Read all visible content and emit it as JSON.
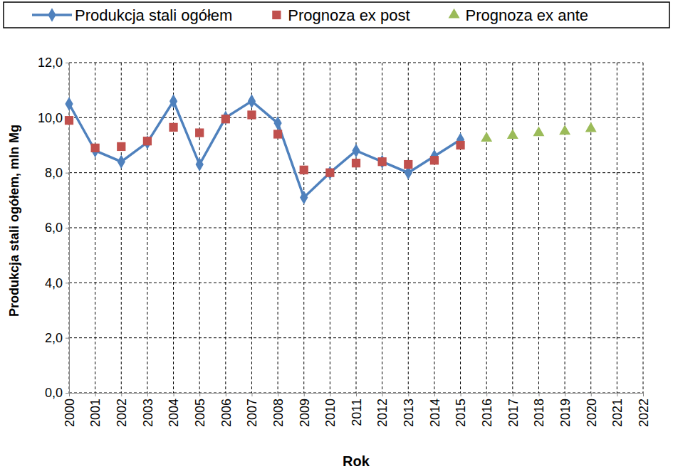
{
  "chart_data": {
    "type": "line",
    "x_label": "Rok",
    "y_label": "Produkcja stali ogółem, mln Mg",
    "x": [
      2000,
      2001,
      2002,
      2003,
      2004,
      2005,
      2006,
      2007,
      2008,
      2009,
      2010,
      2011,
      2012,
      2013,
      2014,
      2015,
      2016,
      2017,
      2018,
      2019,
      2020
    ],
    "series": [
      {
        "name": "Produkcja stali ogółem",
        "type": "line",
        "color": "#4f81bd",
        "marker": "diamond",
        "line_style": "solid",
        "values": [
          10.5,
          8.8,
          8.4,
          9.1,
          10.6,
          8.3,
          10.0,
          10.6,
          9.8,
          7.1,
          8.0,
          8.8,
          8.4,
          8.0,
          8.6,
          9.2,
          null,
          null,
          null,
          null,
          null
        ]
      },
      {
        "name": "Prognoza ex post",
        "type": "scatter",
        "color": "#c0504d",
        "marker": "square",
        "line_style": "none",
        "values": [
          9.9,
          8.9,
          8.95,
          9.15,
          9.65,
          9.45,
          9.95,
          10.1,
          9.4,
          8.1,
          8.0,
          8.35,
          8.4,
          8.3,
          8.45,
          9.0,
          null,
          null,
          null,
          null,
          null
        ]
      },
      {
        "name": "Prognoza ex ante",
        "type": "scatter",
        "color": "#9bbb59",
        "marker": "triangle",
        "line_style": "none",
        "values": [
          null,
          null,
          null,
          null,
          null,
          null,
          null,
          null,
          null,
          null,
          null,
          null,
          null,
          null,
          null,
          null,
          9.25,
          9.35,
          9.45,
          9.5,
          9.6
        ]
      }
    ],
    "xlim": [
      2000,
      2022
    ],
    "xticks": [
      2000,
      2001,
      2002,
      2003,
      2004,
      2005,
      2006,
      2007,
      2008,
      2009,
      2010,
      2011,
      2012,
      2013,
      2014,
      2015,
      2016,
      2017,
      2018,
      2019,
      2020,
      2021,
      2022
    ],
    "ylim": [
      0,
      12
    ],
    "yticks": [
      {
        "value": 0,
        "label": "0,0"
      },
      {
        "value": 2,
        "label": "2,0"
      },
      {
        "value": 4,
        "label": "4,0"
      },
      {
        "value": 6,
        "label": "6,0"
      },
      {
        "value": 8,
        "label": "8,0"
      },
      {
        "value": 10,
        "label": "10,0"
      },
      {
        "value": 12,
        "label": "12,0"
      }
    ],
    "grid": true,
    "legend": "top"
  }
}
